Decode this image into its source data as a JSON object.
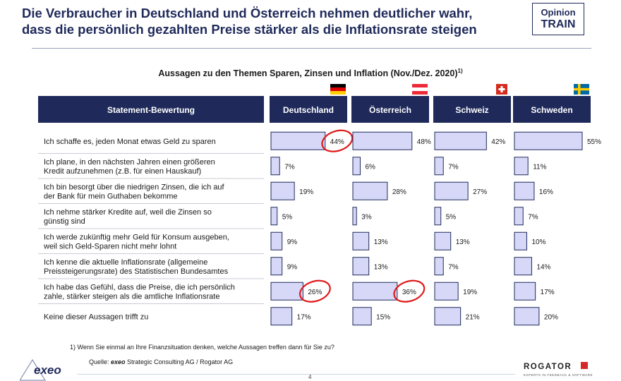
{
  "header": {
    "title_line1": "Die Verbraucher in Deutschland und Österreich nehmen deutlicher wahr,",
    "title_line2": "dass die persönlich gezahlten Preise stärker als die Inflationsrate steigen",
    "badge_line1": "Opinion",
    "badge_line2": "TRAIN"
  },
  "subtitle": "Aussagen zu den Themen Sparen, Zinsen und Inflation (Nov./Dez. 2020)",
  "subtitle_sup": "1)",
  "footnote": "1)  Wenn Sie einmal an Ihre Finanzsituation denken, welche Aussagen treffen dann für Sie zu?",
  "source": {
    "prefix": "Quelle: ",
    "brand": "exeo",
    "rest": " Strategic Consulting AG / Rogator AG"
  },
  "logos": {
    "exeo": "exeo",
    "rogator": "ROGATOR",
    "rogator_sub": "EXPERTS IN FEEDBACK & SOFTWARE"
  },
  "page_number": "4",
  "colors": {
    "header_fill": "#1f2a5a",
    "bar_fill": "#d7d8f7",
    "bar_stroke": "#1f2a5a",
    "circle": "#e01b1b"
  },
  "chart_data": {
    "type": "bar",
    "title": "Aussagen zu den Themen Sparen, Zinsen und Inflation (Nov./Dez. 2020)",
    "row_header": "Statement-Bewertung",
    "value_format": "percent",
    "xlim": [
      0,
      55
    ],
    "categories": [
      "Ich schaffe es, jeden Monat etwas Geld zu sparen",
      "Ich plane, in den nächsten Jahren einen größeren Kredit aufzunehmen (z.B. für einen Hauskauf)",
      "Ich bin besorgt über die niedrigen Zinsen, die ich auf der Bank für mein Guthaben bekomme",
      "Ich nehme stärker Kredite auf, weil die Zinsen so günstig sind",
      "Ich werde zukünftig mehr Geld für Konsum ausgeben, weil sich Geld-Sparen nicht mehr lohnt",
      "Ich kenne die aktuelle Inflationsrate (allgemeine Preissteigerungsrate) des Statistischen Bundesamtes",
      "Ich habe das Gefühl, dass die Preise, die ich persönlich zahle, stärker steigen als die amtliche Inflationsrate",
      "Keine dieser Aussagen trifft zu"
    ],
    "category_lines": [
      [
        "Ich schaffe es, jeden Monat etwas Geld zu sparen"
      ],
      [
        "Ich plane, in den nächsten Jahren einen größeren",
        "Kredit aufzunehmen (z.B. für einen Hauskauf)"
      ],
      [
        "Ich bin besorgt über die niedrigen Zinsen, die ich auf",
        "der Bank für mein Guthaben bekomme"
      ],
      [
        "Ich nehme stärker Kredite auf, weil die Zinsen so",
        "günstig sind"
      ],
      [
        "Ich werde zukünftig mehr Geld für Konsum ausgeben,",
        "weil sich Geld-Sparen nicht mehr lohnt"
      ],
      [
        "Ich kenne die aktuelle Inflationsrate (allgemeine",
        "Preissteigerungsrate) des Statistischen Bundesamtes"
      ],
      [
        "Ich habe das Gefühl, dass die Preise, die ich persönlich",
        "zahle, stärker steigen als die amtliche Inflationsrate"
      ],
      [
        "Keine dieser Aussagen trifft zu"
      ]
    ],
    "series": [
      {
        "name": "Deutschland",
        "flag": "de-flag-icon",
        "values": [
          44,
          7,
          19,
          5,
          9,
          9,
          26,
          17
        ],
        "circled": [
          0,
          6
        ]
      },
      {
        "name": "Österreich",
        "flag": "at-flag-icon",
        "values": [
          48,
          6,
          28,
          3,
          13,
          13,
          36,
          15
        ],
        "circled": [
          6
        ]
      },
      {
        "name": "Schweiz",
        "flag": "ch-flag-icon",
        "values": [
          42,
          7,
          27,
          5,
          13,
          7,
          19,
          21
        ],
        "circled": []
      },
      {
        "name": "Schweden",
        "flag": "se-flag-icon",
        "values": [
          55,
          11,
          16,
          7,
          10,
          14,
          17,
          20
        ],
        "circled": []
      }
    ]
  }
}
